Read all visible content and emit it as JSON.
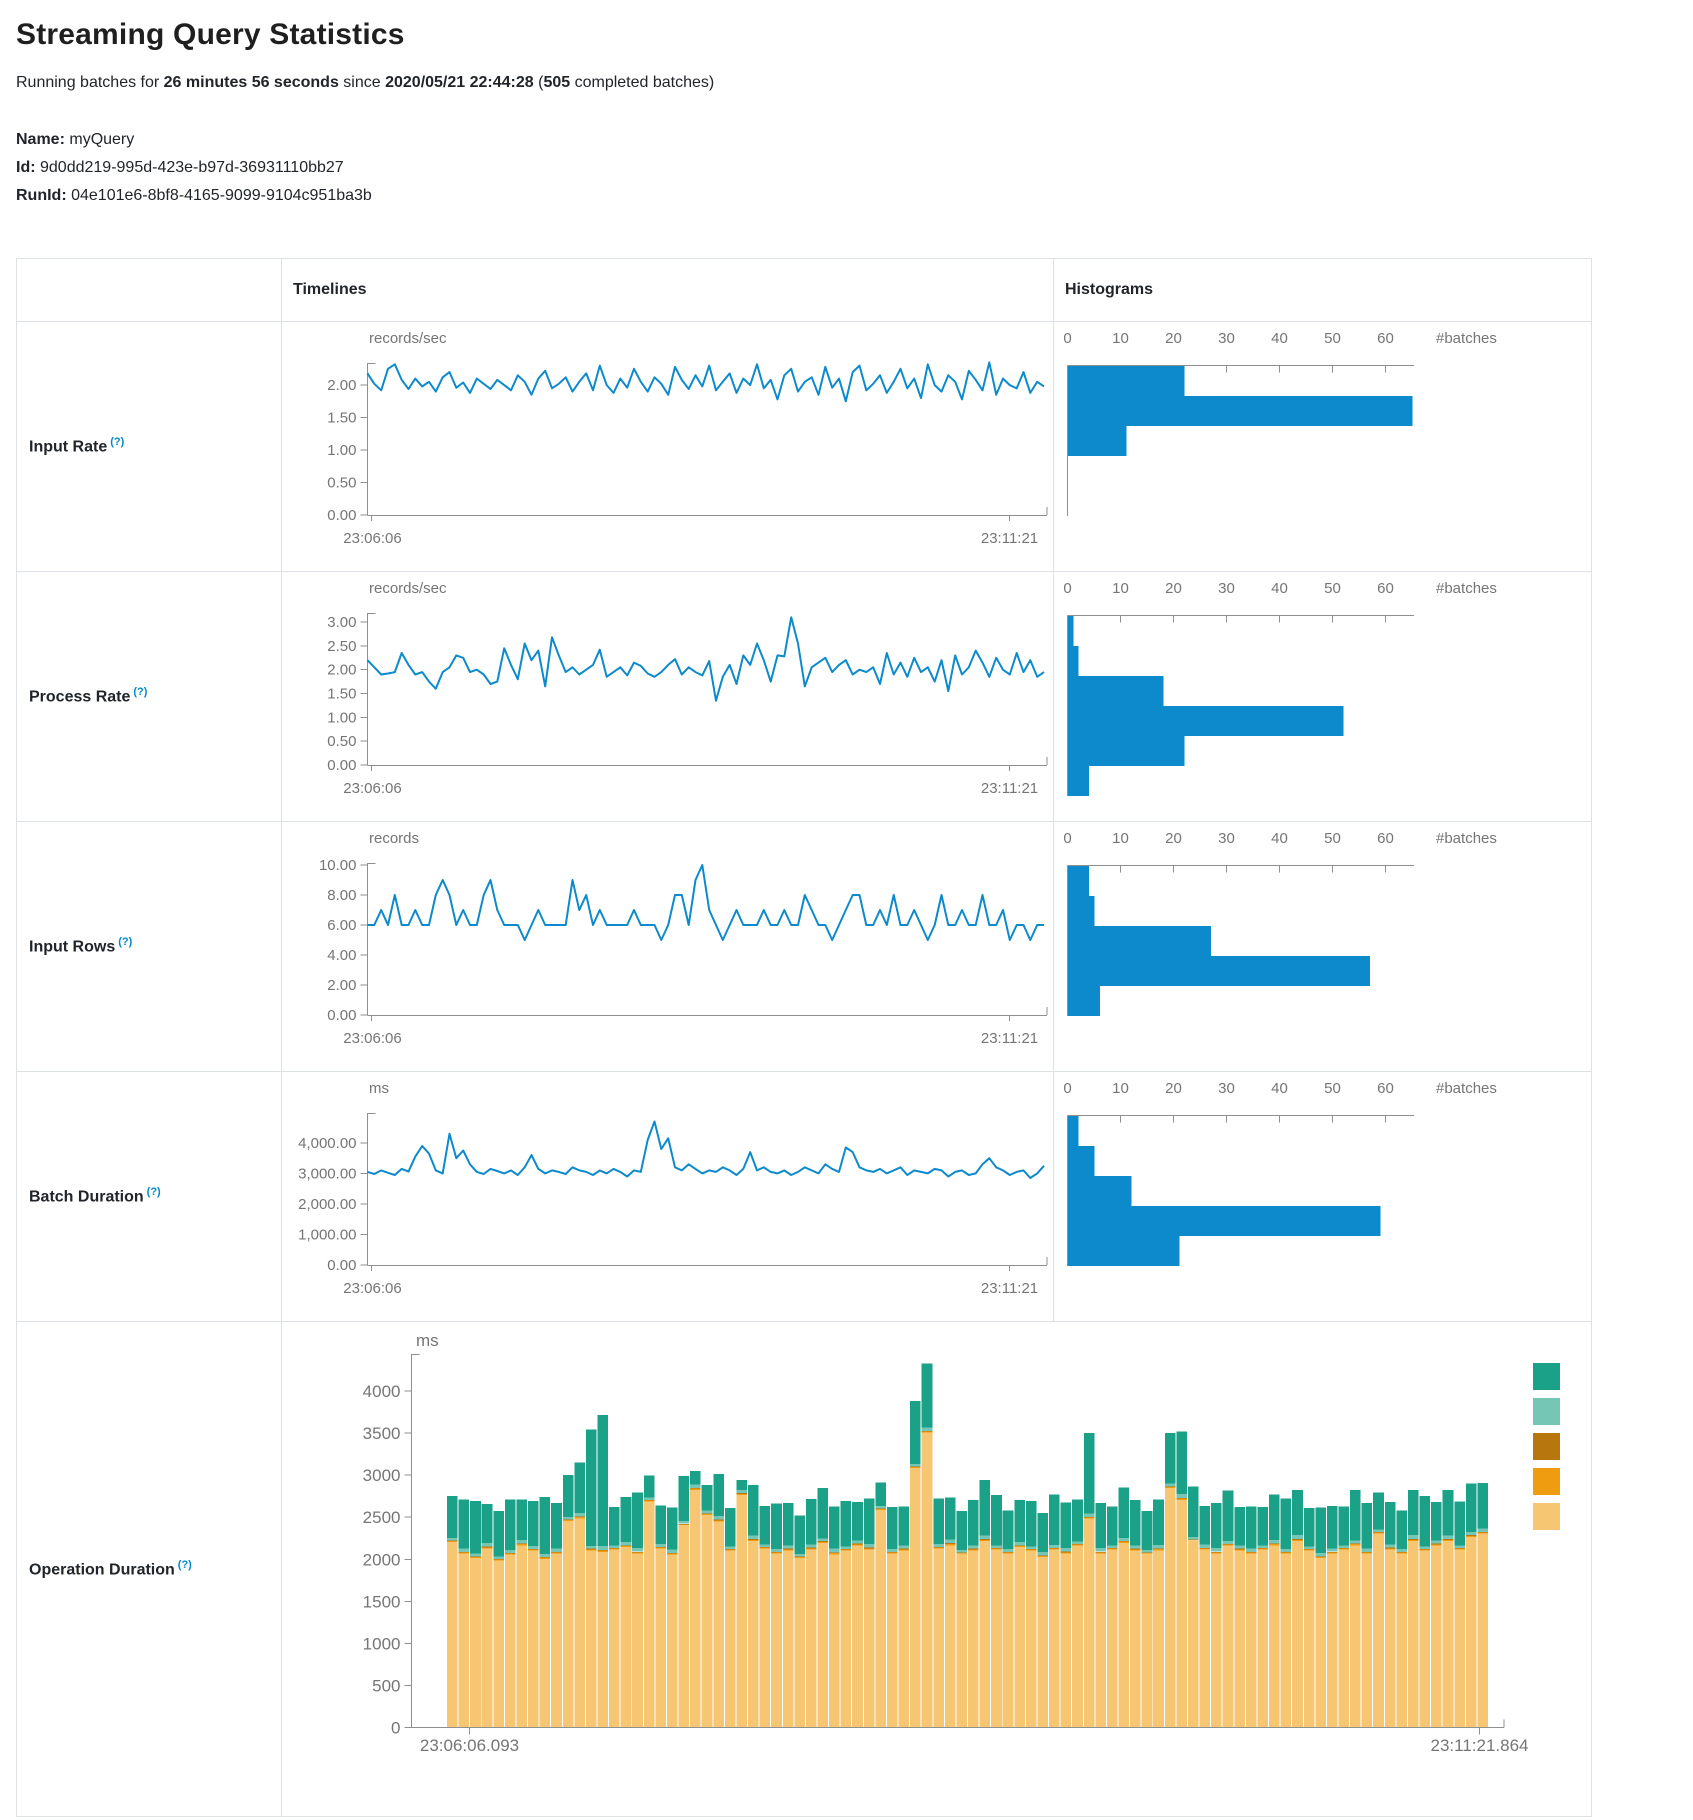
{
  "page": {
    "title": "Streaming Query Statistics",
    "subtitle": {
      "prefix": "Running batches for ",
      "duration": "26 minutes 56 seconds",
      "middle": " since ",
      "since": "2020/05/21 22:44:28",
      "open": " (",
      "batches": "505",
      "suffix": " completed batches)"
    },
    "name_label": "Name:",
    "name_value": "myQuery",
    "id_label": "Id:",
    "id_value": "9d0dd219-995d-423e-b97d-36931110bb27",
    "runid_label": "RunId:",
    "runid_value": "04e101e6-8bf8-4165-9099-9104c951ba3b"
  },
  "table": {
    "headers": {
      "timelines": "Timelines",
      "histograms": "Histograms"
    },
    "rows": [
      {
        "label": "Input Rate",
        "help": "(?)"
      },
      {
        "label": "Process Rate",
        "help": "(?)"
      },
      {
        "label": "Input Rows",
        "help": "(?)"
      },
      {
        "label": "Batch Duration",
        "help": "(?)"
      },
      {
        "label": "Operation Duration",
        "help": "(?)"
      }
    ]
  },
  "colors": {
    "accent_blue": "#0d8acb",
    "axis_gray": "#8f8f8f",
    "text_gray": "#757575",
    "teal": "#1ba187",
    "light_teal": "#76c6b6",
    "brown": "#b8760e",
    "orange": "#f09c10",
    "tan": "#f7c673"
  },
  "chart_data": [
    {
      "id": "input-rate-timeline",
      "type": "line",
      "unit": "records/sec",
      "x_start": "23:06:06",
      "x_end": "23:11:21",
      "y_ticks": [
        0,
        0.5,
        1,
        1.5,
        2
      ],
      "y_tick_labels": [
        "0.00",
        "0.50",
        "1.00",
        "1.50",
        "2.00"
      ],
      "y_max": 2.34,
      "values": [
        2.18,
        2.02,
        1.92,
        2.25,
        2.32,
        2.08,
        1.94,
        2.1,
        1.98,
        2.05,
        1.9,
        2.12,
        2.2,
        1.96,
        2.04,
        1.88,
        2.1,
        2.02,
        1.94,
        2.08,
        2.0,
        1.92,
        2.15,
        2.05,
        1.85,
        2.1,
        2.22,
        1.95,
        2.02,
        2.12,
        1.9,
        2.05,
        2.18,
        1.92,
        2.3,
        2.0,
        1.88,
        2.1,
        1.96,
        2.25,
        2.05,
        1.9,
        2.12,
        2.02,
        1.85,
        2.28,
        2.08,
        1.94,
        2.15,
        1.98,
        2.3,
        1.92,
        2.05,
        2.18,
        1.88,
        2.1,
        2.0,
        2.32,
        1.95,
        2.08,
        1.78,
        2.15,
        2.25,
        1.9,
        2.05,
        2.12,
        1.85,
        2.28,
        1.96,
        2.1,
        1.75,
        2.2,
        2.3,
        1.92,
        2.02,
        2.15,
        1.88,
        2.05,
        2.25,
        1.95,
        2.1,
        1.8,
        2.32,
        2.0,
        1.9,
        2.15,
        2.05,
        1.78,
        2.22,
        2.08,
        1.92,
        2.35,
        1.85,
        2.1,
        2.0,
        1.95,
        2.2,
        1.88,
        2.05,
        1.98
      ]
    },
    {
      "id": "input-rate-histogram",
      "type": "bar",
      "orientation": "horizontal",
      "axis_label": "#batches",
      "x_ticks": [
        0,
        10,
        20,
        30,
        40,
        50,
        60
      ],
      "x_max": 65,
      "values": [
        22,
        65,
        11
      ]
    },
    {
      "id": "process-rate-timeline",
      "type": "line",
      "unit": "records/sec",
      "x_start": "23:06:06",
      "x_end": "23:11:21",
      "y_ticks": [
        0,
        0.5,
        1,
        1.5,
        2,
        2.5,
        3
      ],
      "y_tick_labels": [
        "0.00",
        "0.50",
        "1.00",
        "1.50",
        "2.00",
        "2.50",
        "3.00"
      ],
      "y_max": 3.19,
      "values": [
        2.2,
        2.05,
        1.9,
        1.92,
        1.95,
        2.35,
        2.1,
        1.9,
        1.95,
        1.75,
        1.6,
        1.95,
        2.05,
        2.3,
        2.25,
        1.95,
        2.0,
        1.9,
        1.7,
        1.75,
        2.45,
        2.1,
        1.8,
        2.55,
        2.2,
        2.4,
        1.65,
        2.68,
        2.3,
        1.95,
        2.05,
        1.9,
        2.0,
        2.1,
        2.42,
        1.85,
        1.95,
        2.05,
        1.88,
        2.15,
        2.08,
        1.92,
        1.85,
        1.95,
        2.1,
        2.22,
        1.9,
        2.05,
        1.95,
        1.88,
        2.18,
        1.35,
        1.85,
        2.1,
        1.7,
        2.3,
        2.1,
        2.55,
        2.2,
        1.75,
        2.3,
        2.28,
        3.1,
        2.55,
        1.65,
        2.05,
        2.15,
        2.25,
        1.95,
        2.1,
        2.2,
        1.9,
        2.0,
        1.95,
        2.05,
        1.7,
        2.35,
        1.9,
        2.15,
        1.85,
        2.25,
        1.95,
        2.05,
        1.75,
        2.2,
        1.55,
        2.3,
        1.9,
        2.05,
        2.4,
        2.15,
        1.85,
        2.25,
        2.0,
        1.9,
        2.35,
        1.95,
        2.2,
        1.85,
        1.95
      ]
    },
    {
      "id": "process-rate-histogram",
      "type": "bar",
      "orientation": "horizontal",
      "axis_label": "#batches",
      "x_ticks": [
        0,
        10,
        20,
        30,
        40,
        50,
        60
      ],
      "x_max": 65,
      "values": [
        1,
        2,
        18,
        52,
        22,
        4
      ]
    },
    {
      "id": "input-rows-timeline",
      "type": "line",
      "unit": "records",
      "x_start": "23:06:06",
      "x_end": "23:11:21",
      "y_ticks": [
        0,
        2,
        4,
        6,
        8,
        10
      ],
      "y_tick_labels": [
        "0.00",
        "2.00",
        "4.00",
        "6.00",
        "8.00",
        "10.00"
      ],
      "y_max": 10.13,
      "values": [
        6,
        6,
        7,
        6,
        8,
        6,
        6,
        7,
        6,
        6,
        8,
        9,
        8,
        6,
        7,
        6,
        6,
        8,
        9,
        7,
        6,
        6,
        6,
        5,
        6,
        7,
        6,
        6,
        6,
        6,
        9,
        7,
        8,
        6,
        7,
        6,
        6,
        6,
        6,
        7,
        6,
        6,
        6,
        5,
        6,
        8,
        8,
        6,
        9,
        10,
        7,
        6,
        5,
        6,
        7,
        6,
        6,
        6,
        7,
        6,
        6,
        7,
        6,
        6,
        8,
        7,
        6,
        6,
        5,
        6,
        7,
        8,
        8,
        6,
        6,
        7,
        6,
        8,
        6,
        6,
        7,
        6,
        5,
        6,
        8,
        6,
        6,
        7,
        6,
        6,
        8,
        6,
        6,
        7,
        5,
        6,
        6,
        5,
        6,
        6
      ]
    },
    {
      "id": "input-rows-histogram",
      "type": "bar",
      "orientation": "horizontal",
      "axis_label": "#batches",
      "x_ticks": [
        0,
        10,
        20,
        30,
        40,
        50,
        60
      ],
      "x_max": 65,
      "values": [
        4,
        5,
        27,
        57,
        6
      ]
    },
    {
      "id": "batch-duration-timeline",
      "type": "line",
      "unit": "ms",
      "x_start": "23:06:06",
      "x_end": "23:11:21",
      "y_ticks": [
        0,
        1000,
        2000,
        3000,
        4000
      ],
      "y_tick_labels": [
        "0.00",
        "1,000.00",
        "2,000.00",
        "3,000.00",
        "4,000.00"
      ],
      "y_max": 4980,
      "values": [
        3050,
        2980,
        3100,
        3020,
        2950,
        3150,
        3060,
        3550,
        3900,
        3650,
        3100,
        3000,
        4300,
        3500,
        3750,
        3300,
        3050,
        2980,
        3150,
        3080,
        3000,
        3100,
        2950,
        3200,
        3600,
        3150,
        3000,
        3100,
        3050,
        2980,
        3200,
        3100,
        3050,
        2950,
        3100,
        3000,
        3150,
        3050,
        2900,
        3100,
        3050,
        4100,
        4700,
        3800,
        4150,
        3200,
        3100,
        3300,
        3150,
        3000,
        3100,
        3050,
        3200,
        3100,
        2950,
        3150,
        3700,
        3100,
        3200,
        3050,
        3000,
        3100,
        2950,
        3050,
        3200,
        3100,
        3000,
        3300,
        3150,
        3050,
        3850,
        3700,
        3200,
        3100,
        3050,
        3150,
        3000,
        3100,
        3200,
        2950,
        3100,
        3050,
        3000,
        3150,
        3100,
        2900,
        3050,
        3100,
        2950,
        3000,
        3300,
        3500,
        3200,
        3100,
        2950,
        3050,
        3100,
        2850,
        3000,
        3250
      ]
    },
    {
      "id": "batch-duration-histogram",
      "type": "bar",
      "orientation": "horizontal",
      "axis_label": "#batches",
      "x_ticks": [
        0,
        10,
        20,
        30,
        40,
        50,
        60
      ],
      "x_max": 65,
      "values": [
        2,
        5,
        12,
        59,
        21
      ]
    },
    {
      "id": "operation-duration",
      "type": "stacked_bar",
      "unit": "ms",
      "x_start": "23:06:06.093",
      "x_end": "23:11:21.864",
      "y_ticks": [
        0,
        500,
        1000,
        1500,
        2000,
        2500,
        3000,
        3500,
        4000
      ],
      "y_tick_labels": [
        "0",
        "500",
        "1000",
        "1500",
        "2000",
        "2500",
        "3000",
        "3500",
        "4000"
      ],
      "y_max": 4440,
      "series": [
        {
          "name": "segment-tan",
          "color": "#f7c673",
          "values": [
            2200,
            2060,
            2010,
            2120,
            1980,
            2050,
            2160,
            2100,
            2000,
            2060,
            2450,
            2480,
            2100,
            2080,
            2110,
            2140,
            2060,
            2680,
            2120,
            2050,
            2400,
            2820,
            2520,
            2440,
            2100,
            2760,
            2210,
            2120,
            2060,
            2100,
            2010,
            2110,
            2190,
            2050,
            2100,
            2160,
            2110,
            2580,
            2060,
            2100,
            3080,
            3500,
            2120,
            2160,
            2060,
            2100,
            2210,
            2110,
            2060,
            2140,
            2100,
            2020,
            2110,
            2060,
            2160,
            2480,
            2060,
            2110,
            2190,
            2100,
            2060,
            2100,
            2840,
            2700,
            2210,
            2110,
            2060,
            2160,
            2100,
            2060,
            2110,
            2160,
            2060,
            2210,
            2100,
            2010,
            2060,
            2110,
            2160,
            2060,
            2300,
            2110,
            2060,
            2210,
            2100,
            2160,
            2210,
            2110,
            2260,
            2300
          ]
        },
        {
          "name": "segment-orange",
          "color": "#f09c10",
          "values": [
            10,
            14,
            12,
            16,
            10,
            12,
            15,
            11,
            13,
            12,
            10,
            14,
            12,
            16,
            10,
            12,
            15,
            11,
            13,
            12,
            10,
            14,
            12,
            16,
            10,
            12,
            15,
            11,
            13,
            12,
            10,
            14,
            12,
            16,
            10,
            12,
            15,
            11,
            13,
            12,
            10,
            14,
            12,
            16,
            10,
            12,
            15,
            11,
            13,
            12,
            10,
            14,
            12,
            16,
            10,
            12,
            15,
            11,
            13,
            12,
            10,
            14,
            12,
            16,
            10,
            12,
            15,
            11,
            13,
            12,
            10,
            14,
            12,
            16,
            10,
            12,
            15,
            11,
            13,
            12,
            10,
            14,
            12,
            16,
            10,
            12,
            15,
            11,
            13,
            12
          ]
        },
        {
          "name": "segment-brown",
          "color": "#b8760e",
          "values": [
            6,
            8,
            7,
            9,
            6,
            7,
            8,
            6,
            7,
            8,
            6,
            8,
            7,
            9,
            6,
            7,
            8,
            6,
            7,
            8,
            6,
            8,
            7,
            9,
            6,
            7,
            8,
            6,
            7,
            8,
            6,
            8,
            7,
            9,
            6,
            7,
            8,
            6,
            7,
            8,
            6,
            8,
            7,
            9,
            6,
            7,
            8,
            6,
            7,
            8,
            6,
            8,
            7,
            9,
            6,
            7,
            8,
            6,
            7,
            8,
            6,
            8,
            7,
            9,
            6,
            7,
            8,
            6,
            7,
            8,
            6,
            8,
            7,
            9,
            6,
            7,
            8,
            6,
            7,
            8,
            6,
            8,
            7,
            9,
            6,
            7,
            8,
            6,
            7,
            8
          ]
        },
        {
          "name": "segment-light-teal",
          "color": "#76c6b6",
          "values": [
            30,
            40,
            35,
            45,
            30,
            38,
            42,
            32,
            36,
            40,
            30,
            40,
            35,
            45,
            30,
            38,
            42,
            32,
            36,
            40,
            30,
            40,
            35,
            45,
            30,
            38,
            42,
            32,
            36,
            40,
            30,
            40,
            35,
            45,
            30,
            38,
            42,
            32,
            36,
            40,
            30,
            40,
            35,
            45,
            30,
            38,
            42,
            32,
            36,
            40,
            30,
            40,
            35,
            45,
            30,
            38,
            42,
            32,
            36,
            40,
            30,
            40,
            35,
            45,
            30,
            38,
            42,
            32,
            36,
            40,
            30,
            40,
            35,
            45,
            30,
            38,
            42,
            32,
            36,
            40,
            30,
            40,
            35,
            45,
            30,
            38,
            42,
            32,
            36,
            40
          ]
        },
        {
          "name": "segment-teal",
          "color": "#1ba187",
          "values": [
            500,
            580,
            620,
            460,
            540,
            600,
            480,
            540,
            680,
            540,
            500,
            600,
            1380,
            1560,
            460,
            540,
            660,
            260,
            460,
            500,
            540,
            160,
            300,
            500,
            460,
            120,
            600,
            460,
            540,
            500,
            460,
            540,
            600,
            500,
            540,
            460,
            540,
            280,
            500,
            460,
            750,
            760,
            540,
            500,
            460,
            540,
            660,
            600,
            460,
            500,
            540,
            460,
            600,
            540,
            500,
            960,
            540,
            460,
            600,
            540,
            460,
            540,
            600,
            740,
            600,
            460,
            540,
            600,
            460,
            500,
            460,
            540,
            600,
            540,
            460,
            540,
            500,
            460,
            600,
            540,
            440,
            500,
            460,
            540,
            600,
            460,
            540,
            520,
            580,
            540
          ]
        }
      ],
      "legend_colors_top_to_bottom": [
        "#1ba187",
        "#76c6b6",
        "#b8760e",
        "#f09c10",
        "#f7c673"
      ]
    }
  ]
}
